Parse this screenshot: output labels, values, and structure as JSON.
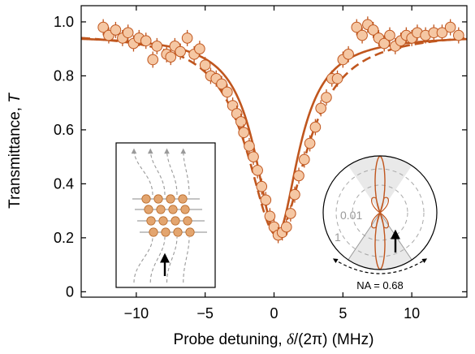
{
  "chart_data": {
    "type": "scatter",
    "xlabel": {
      "prefix": "Probe detuning, ",
      "symbol": "δ",
      "suffix": "/(2π) (MHz)"
    },
    "ylabel": {
      "prefix": "Transmittance, ",
      "symbol": "T"
    },
    "xlim": [
      -14,
      14
    ],
    "ylim": [
      -0.02,
      1.06
    ],
    "xticks": [
      -10,
      -5,
      0,
      5,
      10
    ],
    "xtick_labels": [
      "−10",
      "−5",
      "0",
      "5",
      "10"
    ],
    "yticks": [
      0,
      0.2,
      0.4,
      0.6,
      0.8,
      1.0
    ],
    "ytick_labels": [
      "0",
      "0.2",
      "0.4",
      "0.6",
      "0.8",
      "1.0"
    ],
    "grid": false,
    "series": [
      {
        "style": "markers-with-errorbars",
        "color": "#c0561e",
        "fill": "#f5c7a3",
        "x": [
          -12.4,
          -12.0,
          -11.5,
          -11.0,
          -10.6,
          -10.2,
          -9.8,
          -9.3,
          -8.8,
          -8.5,
          -7.8,
          -7.5,
          -7.2,
          -6.8,
          -6.3,
          -5.8,
          -5.4,
          -5.0,
          -4.6,
          -4.2,
          -3.8,
          -3.4,
          -3.0,
          -2.7,
          -2.4,
          -2.2,
          -1.8,
          -1.5,
          -1.2,
          -0.9,
          -0.6,
          -0.3,
          0.0,
          0.3,
          0.6,
          0.9,
          1.2,
          1.5,
          1.8,
          2.2,
          2.6,
          3.0,
          3.4,
          3.8,
          4.2,
          4.6,
          5.0,
          5.4,
          6.0,
          6.4,
          6.8,
          7.2,
          7.6,
          8.0,
          8.4,
          8.8,
          9.2,
          9.6,
          10.0,
          10.4,
          11.0,
          11.6,
          12.2,
          12.8,
          13.4
        ],
        "y": [
          0.98,
          0.95,
          0.97,
          0.94,
          0.96,
          0.92,
          0.94,
          0.93,
          0.86,
          0.91,
          0.88,
          0.87,
          0.91,
          0.89,
          0.94,
          0.88,
          0.9,
          0.84,
          0.8,
          0.79,
          0.77,
          0.74,
          0.69,
          0.66,
          0.63,
          0.59,
          0.54,
          0.5,
          0.45,
          0.39,
          0.34,
          0.28,
          0.24,
          0.21,
          0.22,
          0.24,
          0.29,
          0.36,
          0.43,
          0.49,
          0.55,
          0.61,
          0.68,
          0.72,
          0.79,
          0.79,
          0.86,
          0.88,
          0.98,
          0.95,
          0.99,
          0.97,
          0.94,
          0.92,
          0.95,
          0.91,
          0.93,
          0.95,
          0.94,
          0.96,
          0.95,
          0.96,
          0.96,
          0.98,
          0.95
        ],
        "yerr": 0.03
      },
      {
        "style": "solid-fit",
        "color": "#c0561e",
        "model": "lorentzian",
        "baseline": 0.95,
        "min": 0.21,
        "center": 0.2,
        "hwhm": 1.9
      },
      {
        "style": "dashed",
        "color": "#c0561e",
        "model": "lorentzian",
        "baseline": 0.965,
        "min": 0.21,
        "center": 0.2,
        "hwhm": 2.6
      }
    ],
    "insets": {
      "array": {
        "rows": 4,
        "cols": 4
      },
      "radiation": {
        "ring_labels": [
          "0.01",
          "1"
        ],
        "na_label": "NA = 0.68",
        "shade_color": "#e9e9e9",
        "lobe_color": "#c0561e"
      }
    }
  }
}
